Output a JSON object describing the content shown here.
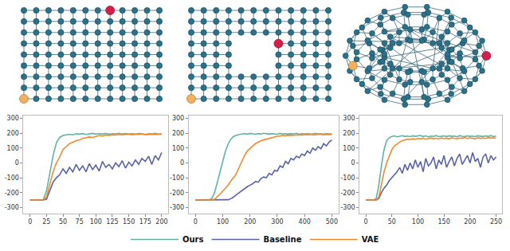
{
  "chart_data": [
    {
      "type": "line",
      "legend": "bottom",
      "xlim": [
        -10,
        210
      ],
      "xticks": [
        0,
        25,
        50,
        75,
        100,
        125,
        150,
        175,
        200
      ],
      "ylim": [
        -340,
        320
      ],
      "yticks": [
        -300,
        -200,
        -100,
        0,
        100,
        200,
        300
      ],
      "x": [
        0,
        5,
        10,
        15,
        20,
        25,
        30,
        35,
        40,
        45,
        50,
        55,
        60,
        65,
        70,
        75,
        80,
        85,
        90,
        95,
        100,
        105,
        110,
        115,
        120,
        125,
        130,
        135,
        140,
        145,
        150,
        155,
        160,
        165,
        170,
        175,
        180,
        185,
        190,
        195,
        200
      ],
      "series": [
        {
          "name": "Ours",
          "color": "#5fb3a0",
          "values": [
            -250,
            -250,
            -250,
            -250,
            -248,
            -190,
            -70,
            50,
            135,
            172,
            185,
            190,
            193,
            189,
            197,
            194,
            198,
            192,
            196,
            199,
            194,
            197,
            195,
            199,
            193,
            197,
            196,
            199,
            194,
            198,
            195,
            197,
            193,
            198,
            196,
            192,
            197,
            195,
            199,
            194,
            196
          ]
        },
        {
          "name": "Baseline",
          "color": "#5a63a8",
          "values": [
            -250,
            -250,
            -250,
            -250,
            -250,
            -245,
            -190,
            -130,
            -100,
            -80,
            -40,
            -70,
            -30,
            -60,
            -10,
            -50,
            -20,
            -60,
            -5,
            -45,
            -15,
            -55,
            10,
            -30,
            -10,
            -40,
            0,
            -25,
            15,
            -35,
            5,
            -20,
            20,
            -10,
            30,
            10,
            45,
            -10,
            50,
            20,
            70
          ]
        },
        {
          "name": "VAE",
          "color": "#ef8a2e",
          "values": [
            -250,
            -250,
            -250,
            -250,
            -250,
            -230,
            -150,
            -60,
            0,
            40,
            90,
            110,
            130,
            140,
            150,
            155,
            165,
            170,
            175,
            172,
            180,
            185,
            182,
            188,
            186,
            190,
            188,
            192,
            189,
            191,
            193,
            190,
            194,
            192,
            195,
            191,
            193,
            196,
            194,
            192,
            195
          ]
        }
      ]
    },
    {
      "type": "line",
      "xlim": [
        -25,
        525
      ],
      "xticks": [
        0,
        100,
        200,
        300,
        400,
        500
      ],
      "ylim": [
        -340,
        320
      ],
      "yticks": [
        -300,
        -200,
        -100,
        0,
        100,
        200,
        300
      ],
      "x": [
        0,
        10,
        20,
        30,
        40,
        50,
        60,
        70,
        80,
        90,
        100,
        110,
        120,
        130,
        140,
        150,
        160,
        170,
        180,
        190,
        200,
        210,
        220,
        230,
        240,
        250,
        260,
        270,
        280,
        290,
        300,
        310,
        320,
        330,
        340,
        350,
        360,
        370,
        380,
        390,
        400,
        410,
        420,
        430,
        440,
        450,
        460,
        470,
        480,
        490,
        500
      ],
      "series": [
        {
          "name": "Ours",
          "color": "#5fb3a0",
          "values": [
            -250,
            -250,
            -250,
            -250,
            -250,
            -250,
            -240,
            -200,
            -130,
            -60,
            10,
            80,
            130,
            160,
            180,
            188,
            192,
            195,
            197,
            194,
            199,
            196,
            193,
            198,
            195,
            200,
            196,
            194,
            198,
            197,
            193,
            199,
            195,
            197,
            194,
            198,
            196,
            199,
            193,
            197,
            195,
            198,
            194,
            196,
            199,
            195,
            197,
            193,
            198,
            196,
            195
          ]
        },
        {
          "name": "Baseline",
          "color": "#5a63a8",
          "values": [
            -250,
            -250,
            -250,
            -250,
            -250,
            -250,
            -250,
            -250,
            -250,
            -250,
            -250,
            -250,
            -248,
            -240,
            -230,
            -215,
            -200,
            -190,
            -175,
            -160,
            -150,
            -140,
            -125,
            -130,
            -105,
            -95,
            -100,
            -70,
            -80,
            -50,
            -55,
            -20,
            -30,
            10,
            -5,
            30,
            20,
            45,
            35,
            60,
            50,
            80,
            65,
            100,
            85,
            110,
            95,
            130,
            115,
            140,
            155
          ]
        },
        {
          "name": "VAE",
          "color": "#ef8a2e",
          "values": [
            -250,
            -250,
            -250,
            -250,
            -250,
            -250,
            -250,
            -245,
            -230,
            -210,
            -190,
            -170,
            -150,
            -120,
            -100,
            -70,
            -30,
            10,
            50,
            80,
            100,
            115,
            130,
            140,
            150,
            155,
            160,
            168,
            172,
            176,
            180,
            182,
            185,
            183,
            187,
            186,
            189,
            188,
            190,
            187,
            191,
            189,
            192,
            190,
            188,
            193,
            191,
            189,
            192,
            190,
            191
          ]
        }
      ]
    },
    {
      "type": "line",
      "xlim": [
        -12,
        262
      ],
      "xticks": [
        0,
        50,
        100,
        150,
        200,
        250
      ],
      "ylim": [
        -340,
        320
      ],
      "yticks": [
        -300,
        -200,
        -100,
        0,
        100,
        200,
        300
      ],
      "x": [
        0,
        5,
        10,
        15,
        20,
        25,
        30,
        35,
        40,
        45,
        50,
        55,
        60,
        65,
        70,
        75,
        80,
        85,
        90,
        95,
        100,
        105,
        110,
        115,
        120,
        125,
        130,
        135,
        140,
        145,
        150,
        155,
        160,
        165,
        170,
        175,
        180,
        185,
        190,
        195,
        200,
        205,
        210,
        215,
        220,
        225,
        230,
        235,
        240,
        245,
        250
      ],
      "series": [
        {
          "name": "Ours",
          "color": "#5fb3a0",
          "values": [
            -250,
            -250,
            -250,
            -250,
            -240,
            -150,
            -20,
            90,
            150,
            170,
            178,
            182,
            176,
            180,
            184,
            178,
            181,
            177,
            183,
            179,
            180,
            185,
            178,
            182,
            176,
            181,
            179,
            184,
            177,
            180,
            182,
            178,
            183,
            179,
            181,
            176,
            184,
            180,
            178,
            182,
            179,
            181,
            177,
            183,
            180,
            178,
            182,
            179,
            184,
            177,
            181
          ]
        },
        {
          "name": "Baseline",
          "color": "#5a63a8",
          "values": [
            -250,
            -250,
            -250,
            -250,
            -250,
            -240,
            -200,
            -170,
            -150,
            -120,
            -100,
            -80,
            -60,
            -30,
            -70,
            -10,
            -50,
            0,
            -40,
            20,
            -30,
            10,
            -60,
            30,
            -20,
            0,
            40,
            -40,
            20,
            -10,
            50,
            -30,
            10,
            40,
            -20,
            30,
            60,
            -10,
            20,
            50,
            0,
            70,
            10,
            30,
            -30,
            40,
            60,
            0,
            50,
            20,
            40
          ]
        },
        {
          "name": "VAE",
          "color": "#ef8a2e",
          "values": [
            -250,
            -250,
            -250,
            -250,
            -250,
            -230,
            -150,
            -60,
            0,
            50,
            90,
            115,
            130,
            140,
            150,
            155,
            160,
            158,
            163,
            160,
            165,
            162,
            167,
            160,
            164,
            168,
            163,
            166,
            161,
            169,
            164,
            167,
            162,
            170,
            165,
            163,
            168,
            166,
            171,
            164,
            169,
            167,
            163,
            170,
            166,
            168,
            165,
            171,
            167,
            169,
            166
          ]
        }
      ]
    }
  ]
}
